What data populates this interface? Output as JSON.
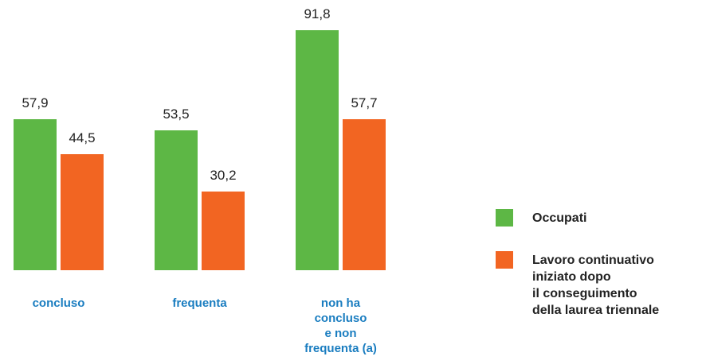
{
  "chart_data": {
    "type": "bar",
    "categories": [
      "concluso",
      "frequenta",
      "non ha\nconcluso\ne non\nfrequenta (a)"
    ],
    "series": [
      {
        "name": "Occupati",
        "color": "#5db745",
        "values": [
          57.9,
          53.5,
          91.8
        ],
        "value_labels": [
          "57,9",
          "53,5",
          "91,8"
        ]
      },
      {
        "name": "Lavoro continuativo\niniziato dopo\nil conseguimento\ndella laurea triennale",
        "color": "#f26522",
        "values": [
          44.5,
          30.2,
          57.7
        ],
        "value_labels": [
          "44,5",
          "30,2",
          "57,7"
        ]
      }
    ],
    "legend": "right"
  }
}
